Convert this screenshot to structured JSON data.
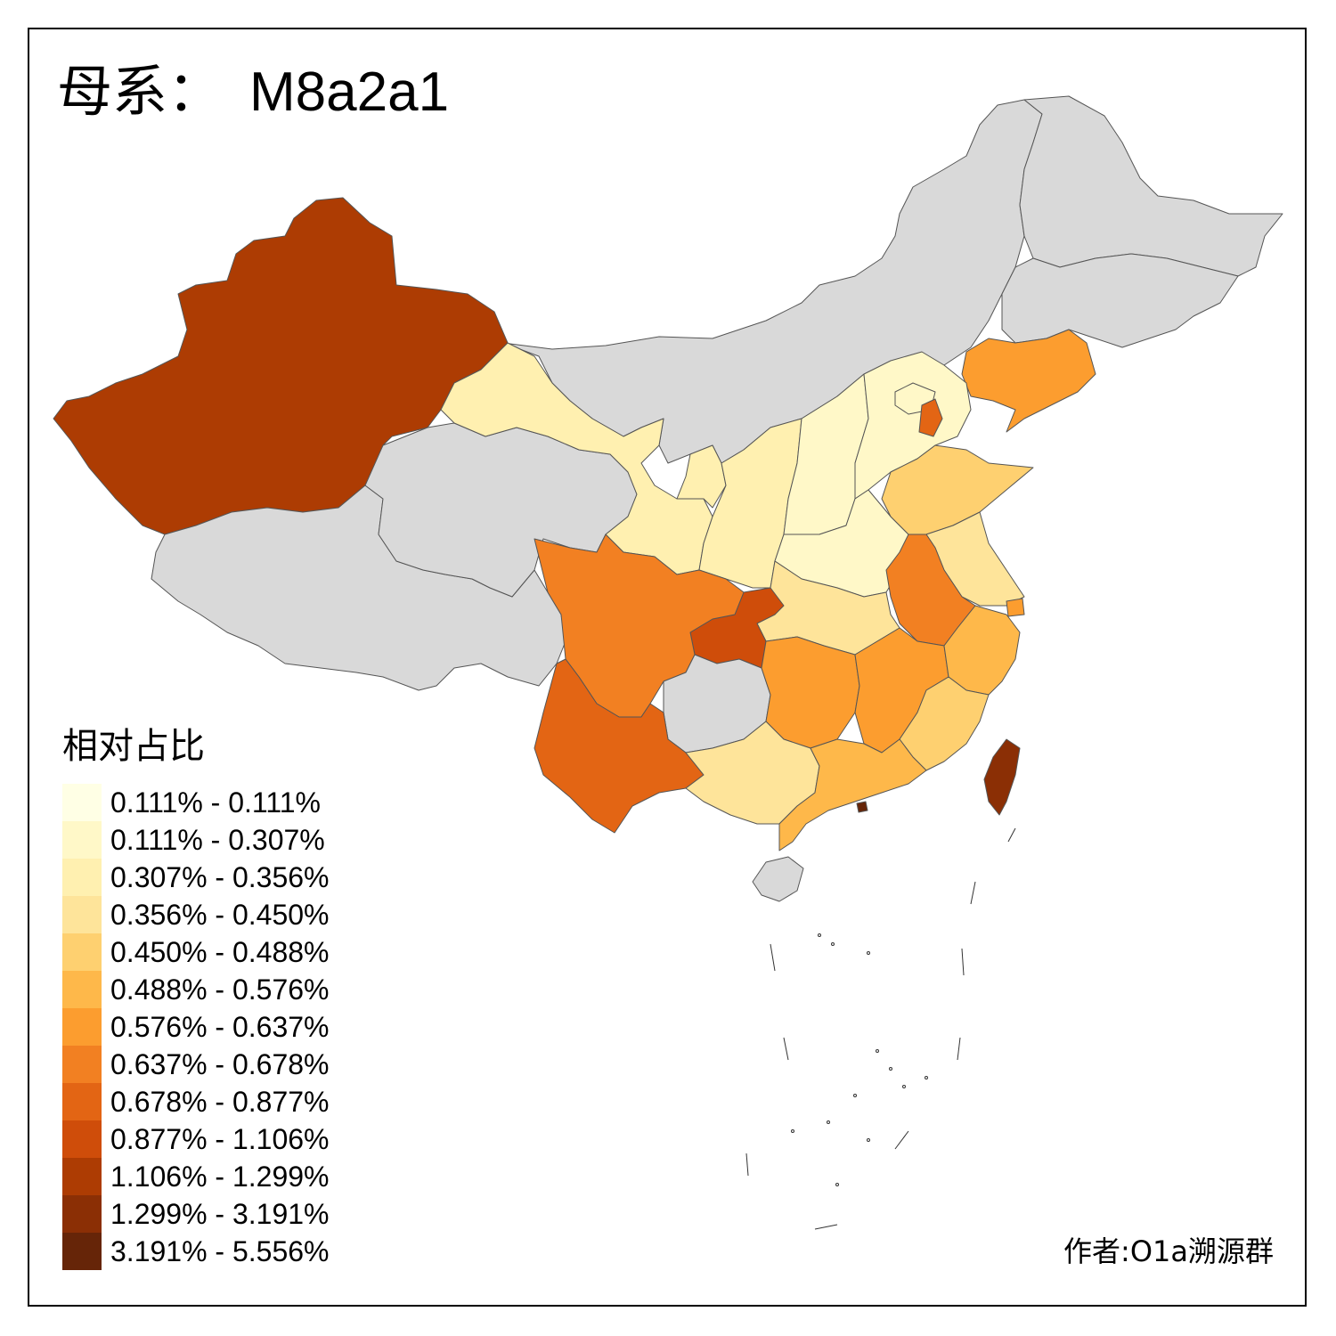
{
  "title": {
    "label": "母系：",
    "haplogroup": "M8a2a1"
  },
  "legend": {
    "title": "相对占比",
    "items": [
      {
        "label": "0.111% - 0.111%",
        "color": "#ffffe5"
      },
      {
        "label": "0.111% - 0.307%",
        "color": "#fff8c8"
      },
      {
        "label": "0.307% - 0.356%",
        "color": "#fff0b0"
      },
      {
        "label": "0.356% - 0.450%",
        "color": "#fee49a"
      },
      {
        "label": "0.450% - 0.488%",
        "color": "#fed070"
      },
      {
        "label": "0.488% - 0.576%",
        "color": "#feb84a"
      },
      {
        "label": "0.576% - 0.637%",
        "color": "#fc9d2f"
      },
      {
        "label": "0.637% - 0.678%",
        "color": "#f28022"
      },
      {
        "label": "0.678% - 0.877%",
        "color": "#e36514"
      },
      {
        "label": "0.877% - 1.106%",
        "color": "#cf4d0a"
      },
      {
        "label": "1.106% - 1.299%",
        "color": "#ad3c03"
      },
      {
        "label": "1.299% - 3.191%",
        "color": "#8b2f05"
      },
      {
        "label": "3.191% - 5.556%",
        "color": "#662508"
      }
    ]
  },
  "no_data_color": "#d9d9d9",
  "author": "作者:O1a溯源群",
  "regions": [
    {
      "id": "xinjiang",
      "color": "#ad3c03"
    },
    {
      "id": "tibet",
      "color": "#d9d9d9"
    },
    {
      "id": "qinghai",
      "color": "#d9d9d9"
    },
    {
      "id": "gansu",
      "color": "#fff0b0"
    },
    {
      "id": "inner-mongolia",
      "color": "#d9d9d9"
    },
    {
      "id": "heilongjiang",
      "color": "#d9d9d9"
    },
    {
      "id": "jilin",
      "color": "#d9d9d9"
    },
    {
      "id": "liaoning",
      "color": "#fc9d2f"
    },
    {
      "id": "hebei",
      "color": "#fff8c8"
    },
    {
      "id": "beijing",
      "color": "#fff8c8"
    },
    {
      "id": "tianjin",
      "color": "#e36514"
    },
    {
      "id": "shanxi",
      "color": "#fff8c8"
    },
    {
      "id": "shaanxi",
      "color": "#fff0b0"
    },
    {
      "id": "ningxia",
      "color": "#fff0b0"
    },
    {
      "id": "henan",
      "color": "#fff8c8"
    },
    {
      "id": "shandong",
      "color": "#fed070"
    },
    {
      "id": "jiangsu",
      "color": "#fee49a"
    },
    {
      "id": "shanghai",
      "color": "#fc9d2f"
    },
    {
      "id": "anhui",
      "color": "#f28022"
    },
    {
      "id": "hubei",
      "color": "#fee49a"
    },
    {
      "id": "sichuan",
      "color": "#f28022"
    },
    {
      "id": "chongqing",
      "color": "#cf4d0a"
    },
    {
      "id": "yunnan",
      "color": "#e36514"
    },
    {
      "id": "guizhou",
      "color": "#d9d9d9"
    },
    {
      "id": "hunan",
      "color": "#fc9d2f"
    },
    {
      "id": "jiangxi",
      "color": "#fc9d2f"
    },
    {
      "id": "zhejiang",
      "color": "#feb84a"
    },
    {
      "id": "fujian",
      "color": "#fed070"
    },
    {
      "id": "guangxi",
      "color": "#fee49a"
    },
    {
      "id": "guangdong",
      "color": "#feb84a"
    },
    {
      "id": "hainan",
      "color": "#d9d9d9"
    },
    {
      "id": "taiwan",
      "color": "#8b2f05"
    },
    {
      "id": "hongkong",
      "color": "#662508"
    }
  ]
}
